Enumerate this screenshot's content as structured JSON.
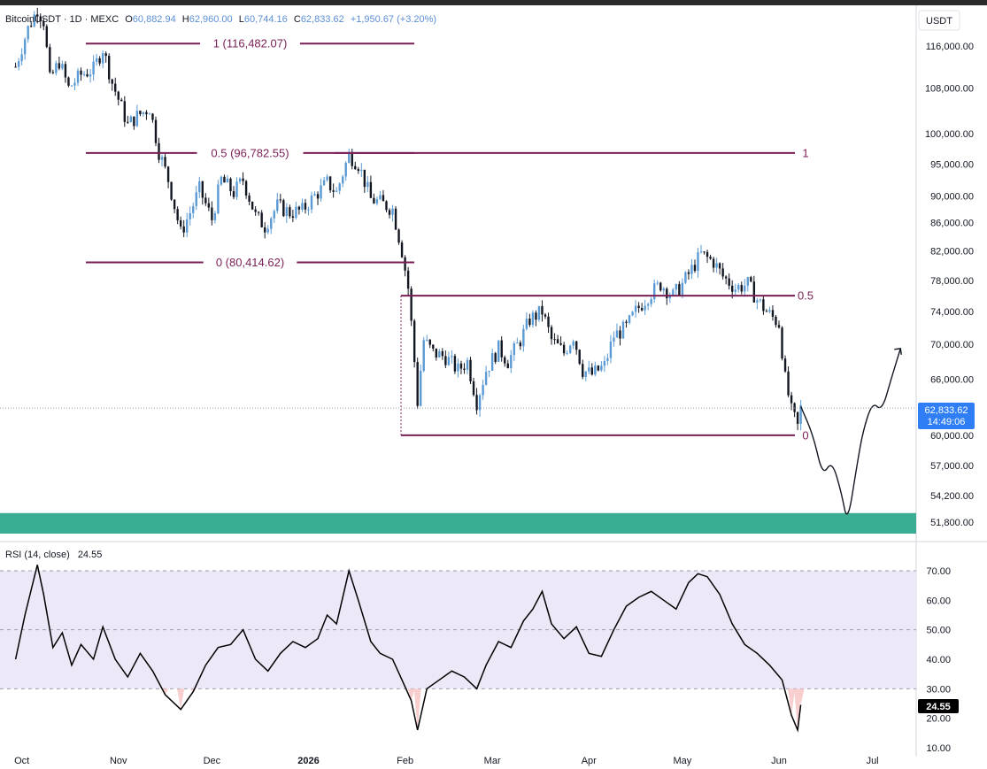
{
  "header": {
    "symbol": "BitcoinUSDT · 1D · MEXC",
    "o_label": "O",
    "o_value": "60,882.94",
    "h_label": "H",
    "h_value": "62,960.00",
    "l_label": "L",
    "l_value": "60,744.16",
    "c_label": "C",
    "c_value": "62,833.62",
    "change": "+1,950.67 (+3.20%)"
  },
  "currency": "USDT",
  "price_badge": {
    "price": "62,833.62",
    "countdown": "14:49:06"
  },
  "rsi_header": {
    "label": "RSI (14, close)",
    "value": "24.55"
  },
  "rsi_badge": "24.55",
  "colors": {
    "up": "#5b9bd5",
    "down": "#131722",
    "fib": "#7a1f55",
    "support_zone": "#3aae92",
    "rsi_band": "#ede8f7",
    "rsi_line": "#000000",
    "oversold_fill": "#f7c9c9"
  },
  "chart_data": [
    {
      "type": "candlestick",
      "title": "BitcoinUSDT · 1D · MEXC",
      "ylabel": "USDT",
      "ylim": [
        50000,
        120000
      ],
      "price_ticks": [
        "116,000.00",
        "108,000.00",
        "100,000.00",
        "95,000.00",
        "90,000.00",
        "86,000.00",
        "82,000.00",
        "78,000.00",
        "74,000.00",
        "70,000.00",
        "66,000.00",
        "60,000.00",
        "57,000.00",
        "54,200.00",
        "51,800.00"
      ],
      "x_ticks": [
        "Oct",
        "Nov",
        "Dec",
        "2026",
        "Feb",
        "Mar",
        "Apr",
        "May",
        "Jun",
        "Jul"
      ],
      "close_path": [
        [
          "2025-09-29",
          112000
        ],
        [
          "2025-10-03",
          119500
        ],
        [
          "2025-10-06",
          123500
        ],
        [
          "2025-10-08",
          121000
        ],
        [
          "2025-10-10",
          109500
        ],
        [
          "2025-10-13",
          113000
        ],
        [
          "2025-10-16",
          108000
        ],
        [
          "2025-10-20",
          110500
        ],
        [
          "2025-10-24",
          111500
        ],
        [
          "2025-10-27",
          115500
        ],
        [
          "2025-10-30",
          109000
        ],
        [
          "2025-11-04",
          101500
        ],
        [
          "2025-11-07",
          103000
        ],
        [
          "2025-11-11",
          104500
        ],
        [
          "2025-11-14",
          97000
        ],
        [
          "2025-11-17",
          92500
        ],
        [
          "2025-11-21",
          84500
        ],
        [
          "2025-11-24",
          87500
        ],
        [
          "2025-11-27",
          91000
        ],
        [
          "2025-12-01",
          86500
        ],
        [
          "2025-12-04",
          92500
        ],
        [
          "2025-12-08",
          90500
        ],
        [
          "2025-12-11",
          92500
        ],
        [
          "2025-12-15",
          87000
        ],
        [
          "2025-12-18",
          85500
        ],
        [
          "2025-12-22",
          88500
        ],
        [
          "2025-12-26",
          87500
        ],
        [
          "2025-12-30",
          87800
        ],
        [
          "2026-01-03",
          90000
        ],
        [
          "2026-01-07",
          92000
        ],
        [
          "2026-01-10",
          90500
        ],
        [
          "2026-01-14",
          96500
        ],
        [
          "2026-01-17",
          95000
        ],
        [
          "2026-01-21",
          89500
        ],
        [
          "2026-01-24",
          89000
        ],
        [
          "2026-01-28",
          88000
        ],
        [
          "2026-01-31",
          82000
        ],
        [
          "2026-02-02",
          77000
        ],
        [
          "2026-02-05",
          63500
        ],
        [
          "2026-02-07",
          70500
        ],
        [
          "2026-02-10",
          69000
        ],
        [
          "2026-02-14",
          68500
        ],
        [
          "2026-02-18",
          67000
        ],
        [
          "2026-02-21",
          68000
        ],
        [
          "2026-02-24",
          63500
        ],
        [
          "2026-02-27",
          67000
        ],
        [
          "2026-03-03",
          69500
        ],
        [
          "2026-03-06",
          68000
        ],
        [
          "2026-03-10",
          70500
        ],
        [
          "2026-03-13",
          73000
        ],
        [
          "2026-03-17",
          74000
        ],
        [
          "2026-03-20",
          70500
        ],
        [
          "2026-03-24",
          69000
        ],
        [
          "2026-03-27",
          71000
        ],
        [
          "2026-03-30",
          67000
        ],
        [
          "2026-04-02",
          66500
        ],
        [
          "2026-04-06",
          67500
        ],
        [
          "2026-04-09",
          71000
        ],
        [
          "2026-04-13",
          72000
        ],
        [
          "2026-04-16",
          74000
        ],
        [
          "2026-04-20",
          76000
        ],
        [
          "2026-04-24",
          77500
        ],
        [
          "2026-04-28",
          76000
        ],
        [
          "2026-05-01",
          77500
        ],
        [
          "2026-05-04",
          79500
        ],
        [
          "2026-05-07",
          81500
        ],
        [
          "2026-05-11",
          80500
        ],
        [
          "2026-05-14",
          78500
        ],
        [
          "2026-05-18",
          77000
        ],
        [
          "2026-05-22",
          77500
        ],
        [
          "2026-05-25",
          75500
        ],
        [
          "2026-05-28",
          74000
        ],
        [
          "2026-06-01",
          72500
        ],
        [
          "2026-06-03",
          66000
        ],
        [
          "2026-06-05",
          62500
        ],
        [
          "2026-06-07",
          60882.94
        ],
        [
          "2026-06-08",
          62833.62
        ]
      ],
      "fib_levels_upper": [
        {
          "label": "1 (116,482.07)",
          "value": 116482.07
        },
        {
          "label": "0.5 (96,782.55)",
          "value": 96782.55
        },
        {
          "label": "0 (80,414.62)",
          "value": 80414.62
        }
      ],
      "fib_levels_lower": [
        {
          "label": "1",
          "value": 96782.55
        },
        {
          "label": "0.5",
          "value": 76000
        },
        {
          "label": "0",
          "value": 60000
        }
      ],
      "support_zone": [
        50800,
        52600
      ],
      "projection": [
        [
          "2026-06-08",
          63000
        ],
        [
          "2026-06-12",
          60000
        ],
        [
          "2026-06-15",
          56000
        ],
        [
          "2026-06-18",
          57500
        ],
        [
          "2026-06-21",
          54500
        ],
        [
          "2026-06-23",
          51600
        ],
        [
          "2026-06-26",
          57000
        ],
        [
          "2026-06-28",
          60500
        ],
        [
          "2026-07-01",
          63500
        ],
        [
          "2026-07-04",
          62500
        ],
        [
          "2026-07-07",
          66000
        ],
        [
          "2026-07-10",
          69500
        ]
      ],
      "last_price": 62833.62
    },
    {
      "type": "line",
      "title": "RSI (14, close)",
      "ylim": [
        10,
        75
      ],
      "y_ticks": [
        "70.00",
        "60.00",
        "50.00",
        "40.00",
        "30.00",
        "20.00",
        "10.00"
      ],
      "bands": [
        30,
        50,
        70
      ],
      "series": [
        {
          "values": [
            [
              "2025-09-29",
              40
            ],
            [
              "2025-10-02",
              55
            ],
            [
              "2025-10-06",
              72
            ],
            [
              "2025-10-08",
              62
            ],
            [
              "2025-10-11",
              44
            ],
            [
              "2025-10-14",
              49
            ],
            [
              "2025-10-17",
              38
            ],
            [
              "2025-10-20",
              45
            ],
            [
              "2025-10-24",
              40
            ],
            [
              "2025-10-27",
              51
            ],
            [
              "2025-10-31",
              40
            ],
            [
              "2025-11-04",
              34
            ],
            [
              "2025-11-08",
              42
            ],
            [
              "2025-11-12",
              36
            ],
            [
              "2025-11-16",
              28
            ],
            [
              "2025-11-21",
              23
            ],
            [
              "2025-11-25",
              29
            ],
            [
              "2025-11-29",
              38
            ],
            [
              "2025-12-03",
              44
            ],
            [
              "2025-12-07",
              45
            ],
            [
              "2025-12-11",
              50
            ],
            [
              "2025-12-15",
              40
            ],
            [
              "2025-12-19",
              36
            ],
            [
              "2025-12-23",
              42
            ],
            [
              "2025-12-27",
              46
            ],
            [
              "2025-12-31",
              44
            ],
            [
              "2026-01-04",
              47
            ],
            [
              "2026-01-07",
              55
            ],
            [
              "2026-01-10",
              52
            ],
            [
              "2026-01-14",
              70
            ],
            [
              "2026-01-17",
              60
            ],
            [
              "2026-01-21",
              46
            ],
            [
              "2026-01-24",
              42
            ],
            [
              "2026-01-28",
              40
            ],
            [
              "2026-01-31",
              33
            ],
            [
              "2026-02-03",
              26
            ],
            [
              "2026-02-05",
              16
            ],
            [
              "2026-02-08",
              30
            ],
            [
              "2026-02-12",
              33
            ],
            [
              "2026-02-16",
              36
            ],
            [
              "2026-02-20",
              34
            ],
            [
              "2026-02-24",
              30
            ],
            [
              "2026-02-27",
              38
            ],
            [
              "2026-03-03",
              46
            ],
            [
              "2026-03-07",
              44
            ],
            [
              "2026-03-11",
              53
            ],
            [
              "2026-03-14",
              57
            ],
            [
              "2026-03-17",
              63
            ],
            [
              "2026-03-20",
              52
            ],
            [
              "2026-03-24",
              47
            ],
            [
              "2026-03-28",
              51
            ],
            [
              "2026-04-01",
              42
            ],
            [
              "2026-04-05",
              41
            ],
            [
              "2026-04-09",
              50
            ],
            [
              "2026-04-13",
              58
            ],
            [
              "2026-04-17",
              61
            ],
            [
              "2026-04-21",
              63
            ],
            [
              "2026-04-25",
              60
            ],
            [
              "2026-04-29",
              57
            ],
            [
              "2026-05-03",
              66
            ],
            [
              "2026-05-06",
              69
            ],
            [
              "2026-05-09",
              68
            ],
            [
              "2026-05-13",
              62
            ],
            [
              "2026-05-17",
              52
            ],
            [
              "2026-05-21",
              45
            ],
            [
              "2026-05-25",
              42
            ],
            [
              "2026-05-29",
              38
            ],
            [
              "2026-06-02",
              33
            ],
            [
              "2026-06-05",
              21
            ],
            [
              "2026-06-07",
              16
            ],
            [
              "2026-06-08",
              24.55
            ]
          ]
        }
      ]
    }
  ]
}
